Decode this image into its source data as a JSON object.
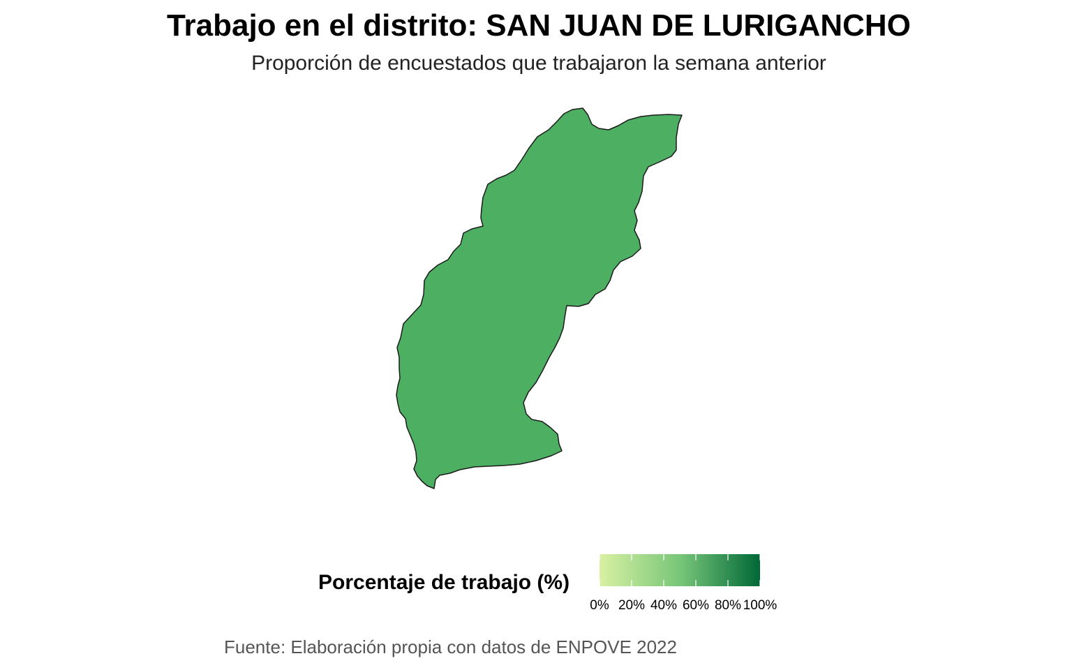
{
  "title": "Trabajo en el distrito: SAN JUAN DE LURIGANCHO",
  "subtitle": "Proporción de encuestados que trabajaron la semana anterior",
  "caption": "Fuente: Elaboración propia con datos de ENPOVE 2022",
  "map": {
    "region_name": "SAN JUAN DE LURIGANCHO",
    "fill_color": "#4daf62",
    "outline_color": "#1a1a1a"
  },
  "legend": {
    "title": "Porcentaje de trabajo (%)",
    "color_low": "#d9f0a3",
    "color_mid": "#78c679",
    "color_high": "#006837",
    "range": [
      0,
      100
    ],
    "ticks": [
      {
        "value": 0,
        "label": "0%"
      },
      {
        "value": 20,
        "label": "20%"
      },
      {
        "value": 40,
        "label": "40%"
      },
      {
        "value": 60,
        "label": "60%"
      },
      {
        "value": 80,
        "label": "80%"
      },
      {
        "value": 100,
        "label": "100%"
      }
    ]
  }
}
